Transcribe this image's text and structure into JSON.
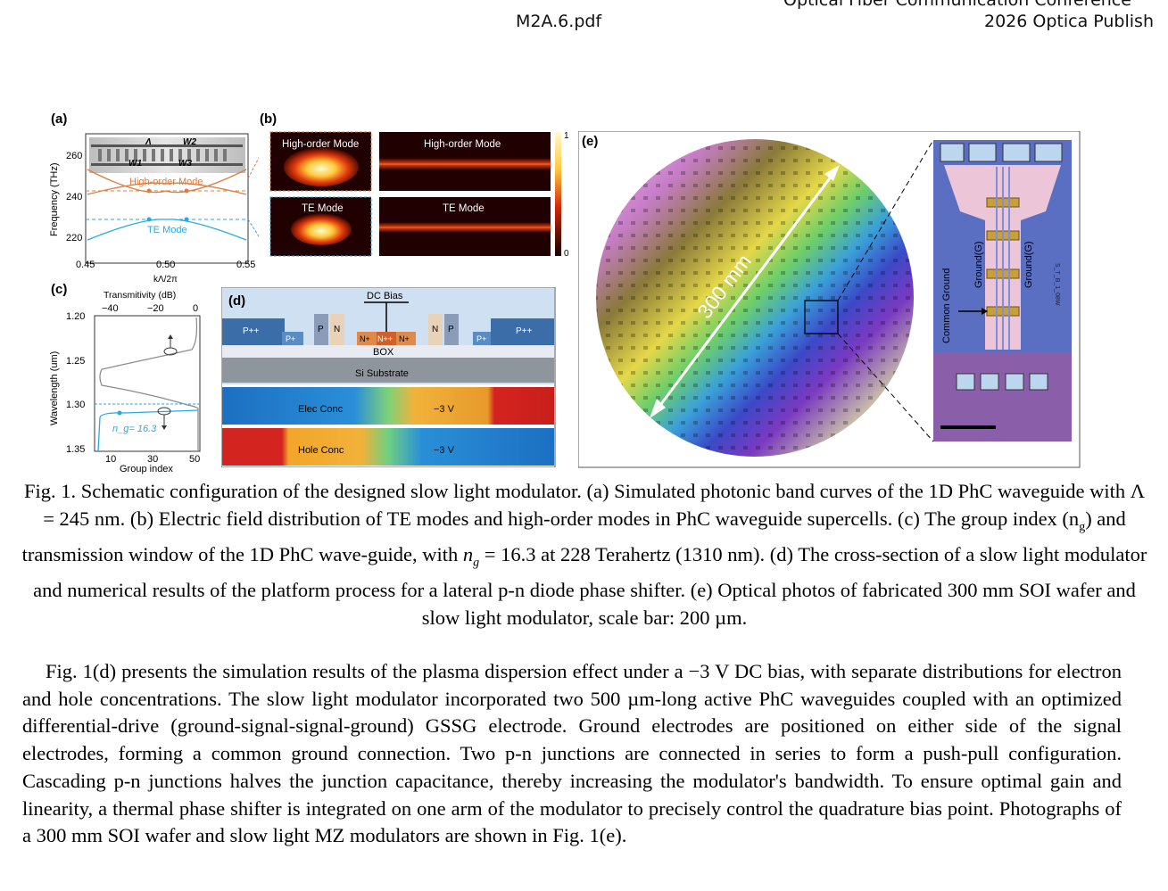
{
  "header": {
    "filename": "M2A.6.pdf",
    "conference_line1": "Optical Fiber Communication Conference",
    "conference_line2": "2026 Optica Publish"
  },
  "panels": {
    "a": {
      "label": "(a)",
      "ylabel": "Frequency (THz)",
      "xlabel": "kΛ/2π",
      "yticks": [
        "260",
        "240",
        "220"
      ],
      "xticks": [
        "0.45",
        "0.50",
        "0.55"
      ],
      "mode_high": "High-order Mode",
      "mode_te": "TE Mode",
      "sym_lambda": "Λ",
      "sym_w1": "W1",
      "sym_w2": "W2",
      "sym_w3": "W3"
    },
    "b": {
      "label": "(b)",
      "tiles": [
        "High-order Mode",
        "High-order Mode",
        "TE Mode",
        "TE Mode"
      ],
      "colorbar_max": "1",
      "colorbar_min": "0"
    },
    "c": {
      "label": "(c)",
      "top_axis_label": "Transmitivity (dB)",
      "top_ticks": [
        "−40",
        "−20",
        "0"
      ],
      "ylabel": "Wavelength (um)",
      "yticks": [
        "1.20",
        "1.25",
        "1.30",
        "1.35"
      ],
      "bottom_ticks": [
        "10",
        "30",
        "50"
      ],
      "xlabel": "Group index",
      "annotation": "n_g= 16.3",
      "colors": {
        "group_index": "#2aa9e0",
        "transmission": "#888888"
      }
    },
    "d": {
      "label": "(d)",
      "dc_bias": "DC Bias",
      "regions": [
        "P++",
        "P+",
        "P",
        "N",
        "N+",
        "N++",
        "N+",
        "N",
        "P",
        "P+",
        "P++"
      ],
      "box": "BOX",
      "substrate": "Si Substrate",
      "elec_conc": "Elec Conc",
      "hole_conc": "Hole Conc",
      "voltage": "−3 V"
    },
    "e": {
      "label": "(e)",
      "wafer_size": "300 mm",
      "common_ground": "Common Ground",
      "ground_label": "Ground(G)",
      "chip_id": "S_T_B_1_08W"
    }
  },
  "caption": "Fig. 1. Schematic configuration of the designed slow light modulator. (a) Simulated photonic band curves of the 1D PhC waveguide with Λ = 245 nm. (b) Electric field distribution of TE modes and high-order modes in PhC waveguide supercells. (c) The group index (ng) and transmission window of the 1D PhC wave-guide, with ng = 16.3 at 228 Terahertz (1310 nm). (d) The cross-section of a slow light modulator and numerical results of the platform process for a lateral p-n diode phase shifter. (e) Optical photos of fabricated 300 mm SOI wafer and slow light modulator, scale bar: 200 µm.",
  "caption_parts": {
    "p1": "Fig. 1. Schematic configuration of the designed slow light modulator. (a) Simulated photonic band curves of the 1D PhC waveguide with Λ = 245 nm. (b) Electric field distribution of TE modes and high-order modes in PhC waveguide supercells. (c) The group index (n",
    "g1": "g",
    "p2": ") and transmission window of the 1D PhC wave-guide, with ",
    "n": "n",
    "g2": "g",
    "p3": " = 16.3 at 228 Terahertz (1310 nm). (d) The cross-section of a slow light modulator and numerical results of the platform process for a lateral p-n diode phase shifter. (e) Optical photos of fabricated 300 mm SOI wafer and slow light modulator, scale bar: 200 µm."
  },
  "body_text": "Fig. 1(d) presents the simulation results of the plasma dispersion effect under a −3 V DC bias, with separate distributions for electron and hole concentrations. The slow light modulator incorporated two 500 µm-long active PhC waveguides coupled with an optimized differential-drive (ground-signal-signal-ground) GSSG electrode. Ground electrodes are positioned on either side of the signal electrodes, forming a common ground connection. Two p-n junctions are connected in series to form a push-pull configuration. Cascading p-n junctions halves the junction capacitance, thereby increasing the modulator's bandwidth. To ensure optimal gain and linearity, a thermal phase shifter is integrated on one arm of the modulator to precisely control the quadrature bias point. Photographs of a 300 mm SOI wafer and slow light MZ modulators are shown in Fig. 1(e)."
}
